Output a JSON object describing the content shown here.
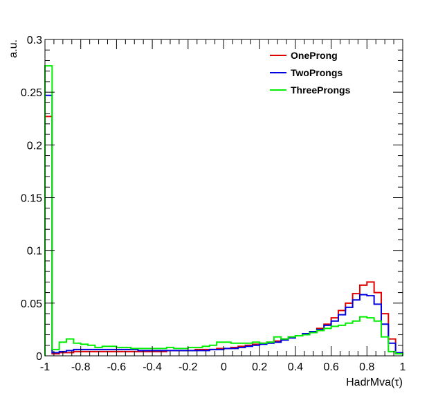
{
  "chart_data": {
    "type": "line",
    "title": "",
    "xlabel": "HadrMva(τ)",
    "ylabel": "a.u.",
    "xlim": [
      -1,
      1
    ],
    "ylim": [
      0,
      0.3
    ],
    "grid": false,
    "legend_position": "top-right",
    "x_ticks": [
      "-1",
      "-0.8",
      "-0.6",
      "-0.4",
      "-0.2",
      "0",
      "0.2",
      "0.4",
      "0.6",
      "0.8",
      "1"
    ],
    "y_ticks": [
      "0",
      "0.05",
      "0.1",
      "0.15",
      "0.2",
      "0.25",
      "0.3"
    ],
    "bin_edges": [
      -1.0,
      -0.96,
      -0.92,
      -0.88,
      -0.84,
      -0.8,
      -0.76,
      -0.72,
      -0.68,
      -0.64,
      -0.6,
      -0.56,
      -0.52,
      -0.48,
      -0.44,
      -0.4,
      -0.36,
      -0.32,
      -0.28,
      -0.24,
      -0.2,
      -0.16,
      -0.12,
      -0.08,
      -0.04,
      0.0,
      0.04,
      0.08,
      0.12,
      0.16,
      0.2,
      0.24,
      0.28,
      0.32,
      0.36,
      0.4,
      0.44,
      0.48,
      0.52,
      0.56,
      0.6,
      0.64,
      0.68,
      0.72,
      0.76,
      0.8,
      0.84,
      0.88,
      0.92,
      0.96,
      1.0
    ],
    "series": [
      {
        "name": "OneProng",
        "color": "#e00000",
        "values": [
          0.227,
          0.002,
          0.003,
          0.003,
          0.004,
          0.004,
          0.004,
          0.004,
          0.004,
          0.004,
          0.004,
          0.004,
          0.004,
          0.004,
          0.004,
          0.004,
          0.004,
          0.005,
          0.005,
          0.005,
          0.005,
          0.006,
          0.006,
          0.006,
          0.007,
          0.007,
          0.008,
          0.009,
          0.01,
          0.011,
          0.012,
          0.013,
          0.014,
          0.016,
          0.018,
          0.019,
          0.021,
          0.023,
          0.026,
          0.03,
          0.036,
          0.043,
          0.05,
          0.059,
          0.067,
          0.07,
          0.06,
          0.04,
          0.016,
          0.002
        ]
      },
      {
        "name": "TwoProngs",
        "color": "#0000e0",
        "values": [
          0.247,
          0.003,
          0.004,
          0.005,
          0.006,
          0.006,
          0.006,
          0.006,
          0.006,
          0.006,
          0.006,
          0.006,
          0.006,
          0.005,
          0.005,
          0.005,
          0.005,
          0.005,
          0.005,
          0.005,
          0.005,
          0.005,
          0.005,
          0.006,
          0.006,
          0.007,
          0.007,
          0.008,
          0.009,
          0.01,
          0.011,
          0.012,
          0.013,
          0.015,
          0.017,
          0.019,
          0.021,
          0.023,
          0.025,
          0.029,
          0.033,
          0.039,
          0.046,
          0.053,
          0.058,
          0.057,
          0.049,
          0.03,
          0.012,
          0.003
        ]
      },
      {
        "name": "ThreeProngs",
        "color": "#00ee00",
        "values": [
          0.275,
          0.006,
          0.013,
          0.016,
          0.012,
          0.011,
          0.01,
          0.008,
          0.009,
          0.009,
          0.008,
          0.008,
          0.007,
          0.007,
          0.007,
          0.007,
          0.007,
          0.008,
          0.007,
          0.007,
          0.008,
          0.008,
          0.009,
          0.01,
          0.013,
          0.013,
          0.012,
          0.012,
          0.012,
          0.013,
          0.012,
          0.013,
          0.018,
          0.016,
          0.018,
          0.019,
          0.02,
          0.022,
          0.024,
          0.026,
          0.028,
          0.029,
          0.031,
          0.033,
          0.037,
          0.036,
          0.033,
          0.018,
          0.004,
          0.002
        ]
      }
    ]
  }
}
